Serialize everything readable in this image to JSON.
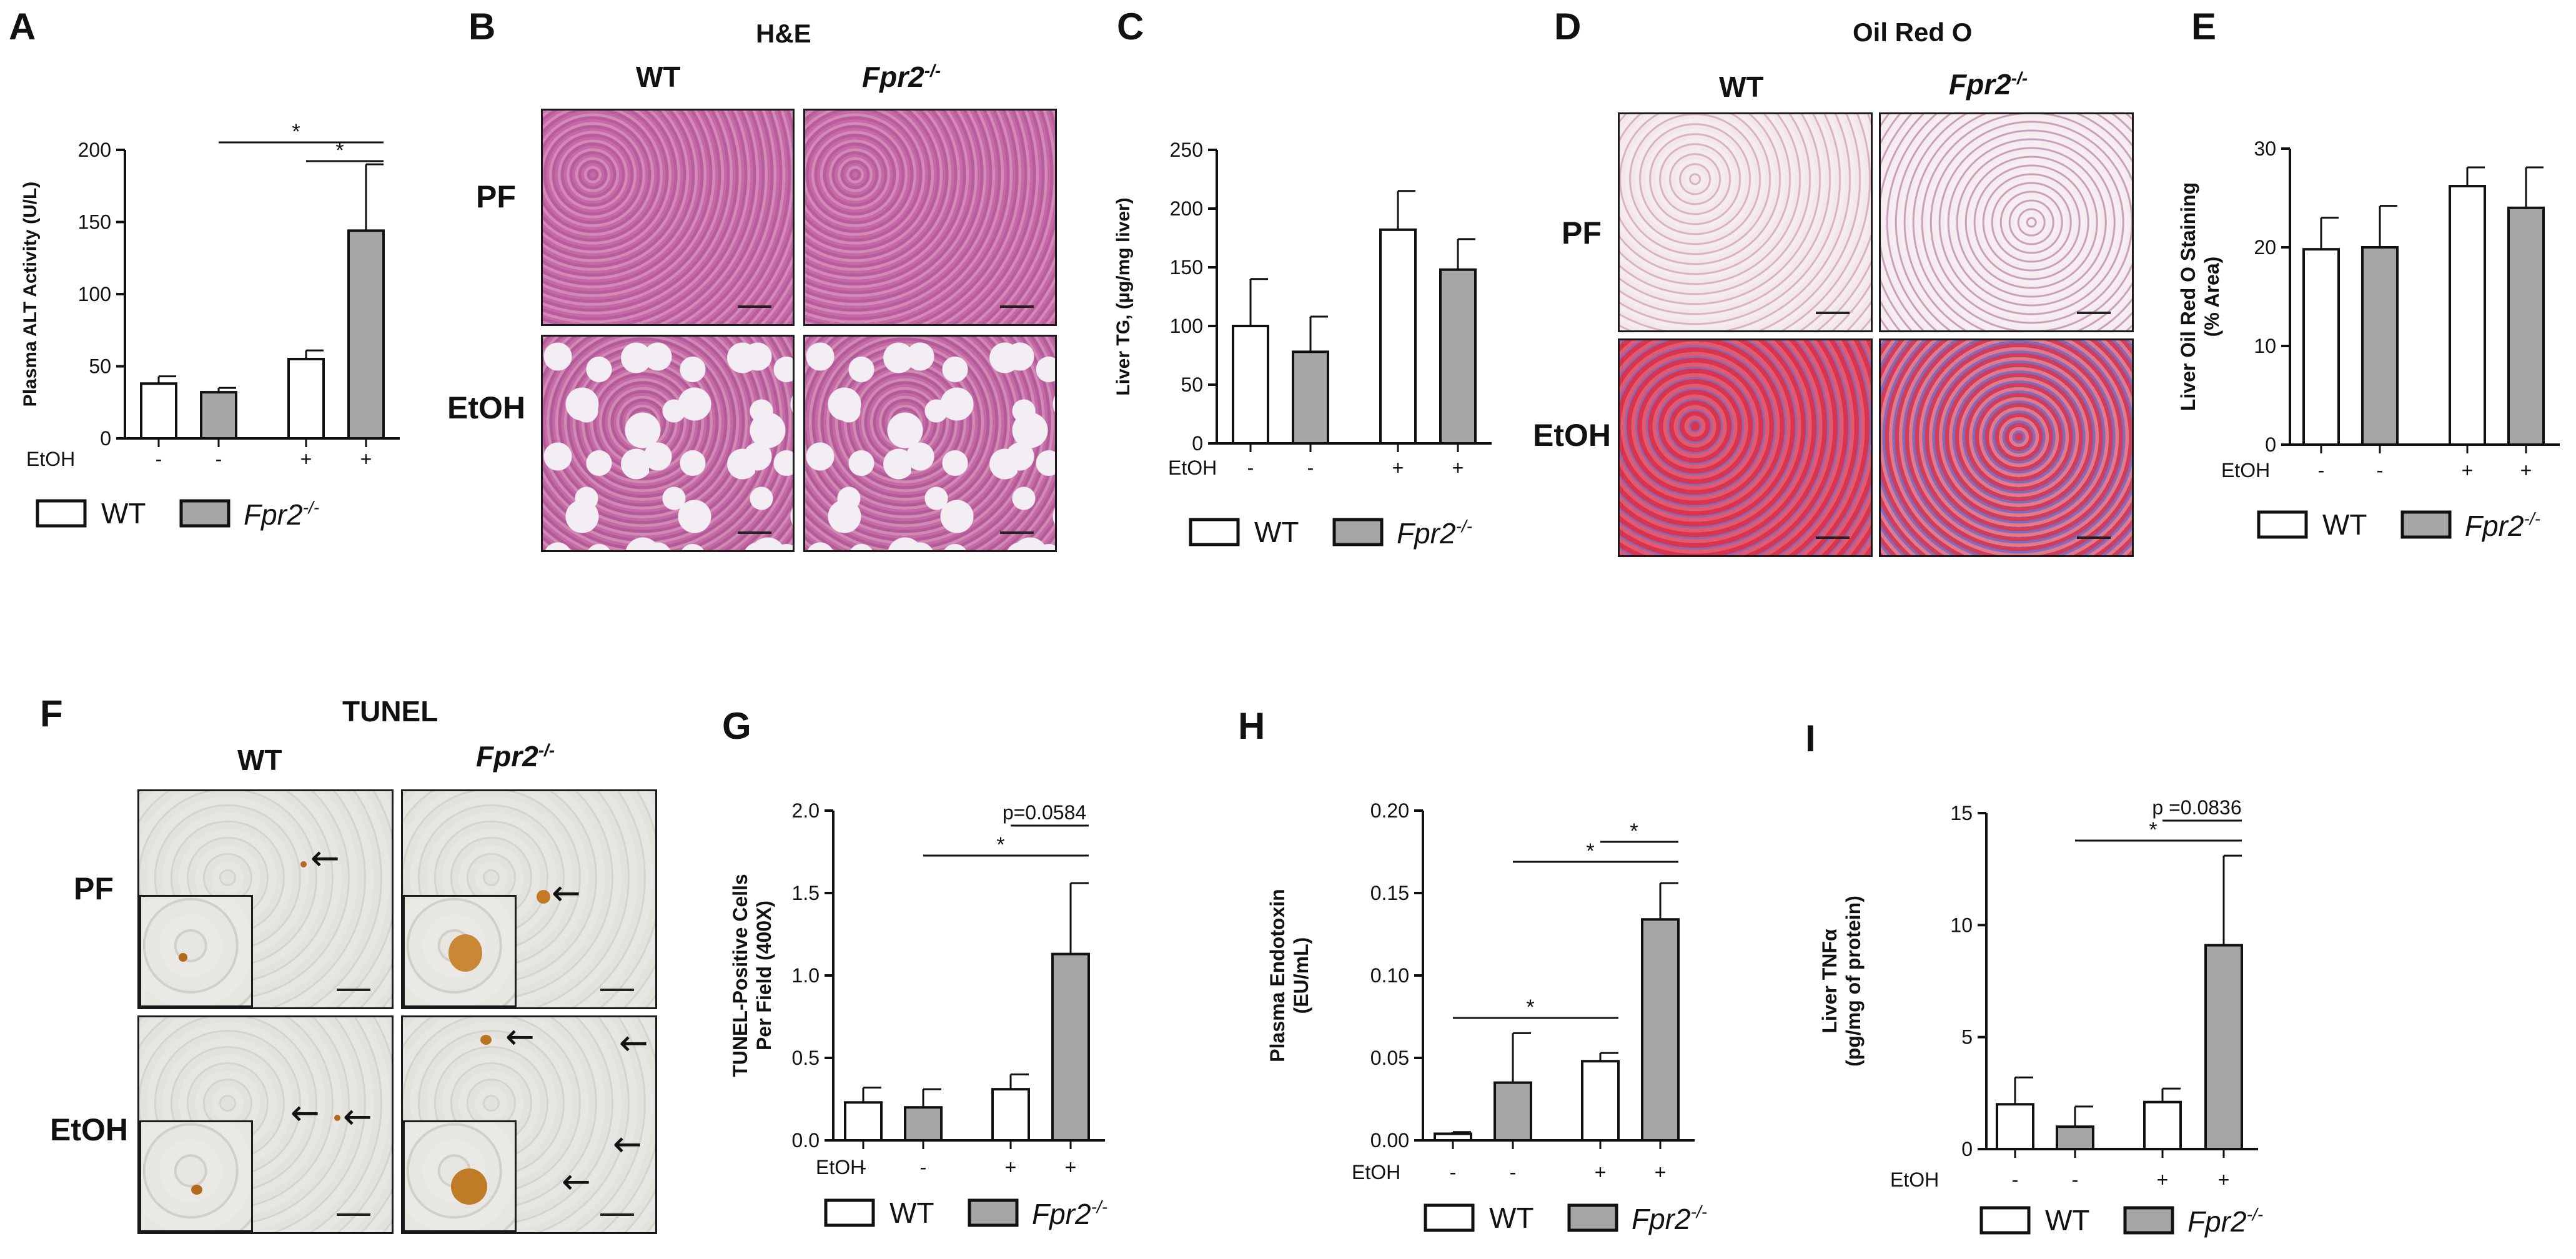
{
  "panel_letters": [
    "A",
    "B",
    "C",
    "D",
    "E",
    "F",
    "G",
    "H",
    "I"
  ],
  "colors": {
    "wt_fill": "#ffffff",
    "ko_fill": "#a6a6a6",
    "stroke": "#111111"
  },
  "legend": {
    "wt": "WT",
    "ko_base": "Fpr2",
    "ko_sup": "-/-"
  },
  "etoh_label": "EtOH",
  "treatment_marks": [
    "-",
    "-",
    "+",
    "+"
  ],
  "micrographs": {
    "B": {
      "title": "H&E",
      "col_wt": "WT",
      "col_ko_base": "Fpr2",
      "col_ko_sup": "-/-",
      "row_pf": "PF",
      "row_etoh": "EtOH"
    },
    "D": {
      "title": "Oil Red O",
      "col_wt": "WT",
      "col_ko_base": "Fpr2",
      "col_ko_sup": "-/-",
      "row_pf": "PF",
      "row_etoh": "EtOH"
    },
    "F": {
      "title": "TUNEL",
      "col_wt": "WT",
      "col_ko_base": "Fpr2",
      "col_ko_sup": "-/-",
      "row_pf": "PF",
      "row_etoh": "EtOH"
    }
  },
  "chart_data": [
    {
      "panel": "A",
      "type": "bar",
      "ylabel": "Plasma ALT Activity (U/L)",
      "ylim": [
        0,
        200
      ],
      "ticks": [
        0,
        50,
        100,
        150,
        200
      ],
      "tick_labels": [
        "0",
        "50",
        "100",
        "150",
        "200"
      ],
      "groups": [
        "WT",
        "Fpr2-/-",
        "WT",
        "Fpr2-/-"
      ],
      "etoh": [
        "-",
        "-",
        "+",
        "+"
      ],
      "values": [
        38,
        32,
        55,
        144
      ],
      "errors": [
        5,
        3,
        6,
        46
      ],
      "annotations": [
        {
          "from": 1,
          "to": 3,
          "text": "*"
        },
        {
          "from": 2,
          "to": 3,
          "text": "*"
        }
      ]
    },
    {
      "panel": "C",
      "type": "bar",
      "ylabel": "Liver TG, (µg/mg liver)",
      "ylim": [
        0,
        250
      ],
      "ticks": [
        0,
        50,
        100,
        150,
        200,
        250
      ],
      "tick_labels": [
        "0",
        "50",
        "100",
        "150",
        "200",
        "250"
      ],
      "groups": [
        "WT",
        "Fpr2-/-",
        "WT",
        "Fpr2-/-"
      ],
      "etoh": [
        "-",
        "-",
        "+",
        "+"
      ],
      "values": [
        100,
        78,
        182,
        148
      ],
      "errors": [
        40,
        30,
        33,
        26
      ],
      "annotations": []
    },
    {
      "panel": "E",
      "type": "bar",
      "ylabel": "Liver Oil Red O Staining (% Area)",
      "ylim": [
        0,
        30
      ],
      "ticks": [
        0,
        10,
        20,
        30
      ],
      "tick_labels": [
        "0",
        "10",
        "20",
        "30"
      ],
      "groups": [
        "WT",
        "Fpr2-/-",
        "WT",
        "Fpr2-/-"
      ],
      "etoh": [
        "-",
        "-",
        "+",
        "+"
      ],
      "values": [
        19.8,
        20.0,
        26.2,
        24.0
      ],
      "errors": [
        3.2,
        4.2,
        1.9,
        4.1
      ],
      "annotations": []
    },
    {
      "panel": "G",
      "type": "bar",
      "ylabel": "TUNEL-Positive Cells Per Field (400X)",
      "ylim": [
        0,
        2.0
      ],
      "ticks": [
        0,
        0.5,
        1.0,
        1.5,
        2.0
      ],
      "tick_labels": [
        "0.0",
        "0.5",
        "1.0",
        "1.5",
        "2.0"
      ],
      "groups": [
        "WT",
        "Fpr2-/-",
        "WT",
        "Fpr2-/-"
      ],
      "etoh": [
        "-",
        "-",
        "+",
        "+"
      ],
      "values": [
        0.23,
        0.2,
        0.31,
        1.13
      ],
      "errors": [
        0.09,
        0.11,
        0.09,
        0.43
      ],
      "annotations": [
        {
          "from": 1,
          "to": 3,
          "text": "*"
        },
        {
          "from": 2,
          "to": 3,
          "text": "p=0.0584"
        }
      ]
    },
    {
      "panel": "H",
      "type": "bar",
      "ylabel": "Plasma Endotoxin (EU/mL)",
      "ylim": [
        0,
        0.2
      ],
      "ticks": [
        0,
        0.05,
        0.1,
        0.15,
        0.2
      ],
      "tick_labels": [
        "0.00",
        "0.05",
        "0.10",
        "0.15",
        "0.20"
      ],
      "groups": [
        "WT",
        "Fpr2-/-",
        "WT",
        "Fpr2-/-"
      ],
      "etoh": [
        "-",
        "-",
        "+",
        "+"
      ],
      "values": [
        0.004,
        0.035,
        0.048,
        0.134
      ],
      "errors": [
        0.001,
        0.03,
        0.005,
        0.022
      ],
      "annotations": [
        {
          "from": 0,
          "to": 2,
          "text": "*"
        },
        {
          "from": 1,
          "to": 3,
          "text": "*"
        },
        {
          "from": 2,
          "to": 3,
          "text": "*"
        }
      ]
    },
    {
      "panel": "I",
      "type": "bar",
      "ylabel": "Liver TNFα (pg/mg of protein)",
      "ylim": [
        0,
        15
      ],
      "ticks": [
        0,
        5,
        10,
        15
      ],
      "tick_labels": [
        "0",
        "5",
        "10",
        "15"
      ],
      "groups": [
        "WT",
        "Fpr2-/-",
        "WT",
        "Fpr2-/-"
      ],
      "etoh": [
        "-",
        "-",
        "+",
        "+"
      ],
      "values": [
        2.0,
        1.0,
        2.1,
        9.1
      ],
      "errors": [
        1.2,
        0.9,
        0.6,
        4.0
      ],
      "annotations": [
        {
          "from": 1,
          "to": 3,
          "text": "*"
        },
        {
          "from": 2,
          "to": 3,
          "text": "p =0.0836"
        }
      ]
    }
  ]
}
